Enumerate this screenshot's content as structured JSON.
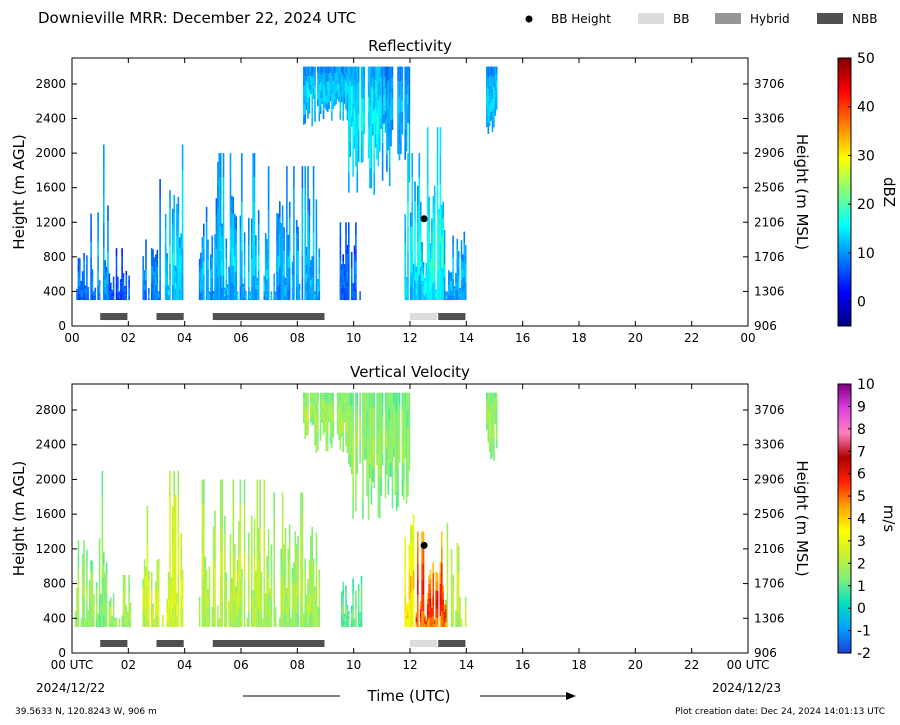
{
  "header": {
    "title": "Downieville MRR:  December 22, 2024 UTC",
    "legend": [
      {
        "label": "BB Height",
        "kind": "dot",
        "color": "#000000"
      },
      {
        "label": "BB",
        "kind": "box",
        "color": "#dcdcdc"
      },
      {
        "label": "Hybrid",
        "kind": "box",
        "color": "#969696"
      },
      {
        "label": "NBB",
        "kind": "box",
        "color": "#505050"
      }
    ]
  },
  "footer": {
    "location": "39.5633 N, 120.8243 W, 906 m",
    "created": "Plot creation date: Dec 24, 2024 14:01:13 UTC",
    "xlabel": "Time (UTC)",
    "start_date": "2024/12/22",
    "end_date": "2024/12/23"
  },
  "chart_data": [
    {
      "type": "heatmap",
      "title": "Reflectivity",
      "ylabel": "Height (m AGL)",
      "ylabel_right": "Height (m MSL)",
      "x_ticks": [
        "00",
        "02",
        "04",
        "06",
        "08",
        "10",
        "12",
        "14",
        "16",
        "18",
        "20",
        "22",
        "00"
      ],
      "xlim": [
        0,
        24
      ],
      "ylim": [
        0,
        3100
      ],
      "y_ticks": [
        0,
        400,
        800,
        1200,
        1600,
        2000,
        2400,
        2800
      ],
      "y_ticks_right": [
        "906",
        "1306",
        "1706",
        "2106",
        "2506",
        "2906",
        "3306",
        "3706"
      ],
      "colorbar": {
        "label": "dBZ",
        "range": [
          -5,
          50
        ],
        "ticks": [
          0,
          10,
          20,
          30,
          40,
          50
        ],
        "stops": [
          "#00007f",
          "#0000ff",
          "#007fff",
          "#00ffff",
          "#7fff7f",
          "#ffff00",
          "#ff7f00",
          "#ff0000",
          "#7f0000"
        ]
      },
      "echoes": [
        {
          "t0": 0.1,
          "t1": 0.9,
          "h0": 300,
          "h1": 900,
          "peak": 1300,
          "level": 8
        },
        {
          "t0": 0.9,
          "t1": 1.3,
          "h0": 300,
          "h1": 1400,
          "peak": 2100,
          "level": 10
        },
        {
          "t0": 1.3,
          "t1": 2.1,
          "h0": 300,
          "h1": 700,
          "peak": 900,
          "level": 6
        },
        {
          "t0": 2.5,
          "t1": 3.3,
          "h0": 300,
          "h1": 1100,
          "peak": 1700,
          "level": 9
        },
        {
          "t0": 3.3,
          "t1": 3.9,
          "h0": 300,
          "h1": 1700,
          "peak": 2100,
          "level": 13
        },
        {
          "t0": 4.5,
          "t1": 5.2,
          "h0": 300,
          "h1": 1500,
          "peak": 1900,
          "level": 11
        },
        {
          "t0": 5.2,
          "t1": 6.9,
          "h0": 300,
          "h1": 1700,
          "peak": 2000,
          "level": 12
        },
        {
          "t0": 6.9,
          "t1": 8.8,
          "h0": 300,
          "h1": 1500,
          "peak": 1850,
          "level": 11
        },
        {
          "t0": 9.5,
          "t1": 10.3,
          "h0": 300,
          "h1": 1000,
          "peak": 1200,
          "level": 7
        },
        {
          "t0": 11.8,
          "t1": 12.5,
          "h0": 300,
          "h1": 1700,
          "peak": 2000,
          "level": 14
        },
        {
          "t0": 12.5,
          "t1": 13.2,
          "h0": 300,
          "h1": 1900,
          "peak": 2300,
          "level": 16
        },
        {
          "t0": 13.2,
          "t1": 14.0,
          "h0": 300,
          "h1": 1200,
          "peak": 1500,
          "level": 11
        }
      ],
      "aloft": [
        {
          "t0": 8.2,
          "t1": 9.8,
          "h0": 2300,
          "h1": 3000,
          "level": 12
        },
        {
          "t0": 9.8,
          "t1": 11.0,
          "h0": 1500,
          "h1": 3000,
          "level": 14
        },
        {
          "t0": 11.0,
          "t1": 12.0,
          "h0": 1600,
          "h1": 3000,
          "level": 11
        },
        {
          "t0": 14.7,
          "t1": 15.1,
          "h0": 2200,
          "h1": 3000,
          "level": 12
        }
      ],
      "bb_height": {
        "time": 12.5,
        "height": 1240
      },
      "bb_bars": [
        {
          "t0": 1.0,
          "t1": 2.0,
          "type": "NBB"
        },
        {
          "t0": 3.0,
          "t1": 4.0,
          "type": "NBB"
        },
        {
          "t0": 5.0,
          "t1": 9.0,
          "type": "NBB"
        },
        {
          "t0": 12.0,
          "t1": 13.0,
          "type": "BB"
        },
        {
          "t0": 13.0,
          "t1": 14.0,
          "type": "NBB"
        }
      ]
    },
    {
      "type": "heatmap",
      "title": "Vertical Velocity",
      "ylabel": "Height (m AGL)",
      "ylabel_right": "Height (m MSL)",
      "x_ticks": [
        "00 UTC",
        "02",
        "04",
        "06",
        "08",
        "10",
        "12",
        "14",
        "16",
        "18",
        "20",
        "22",
        "00 UTC"
      ],
      "xlim": [
        0,
        24
      ],
      "ylim": [
        0,
        3100
      ],
      "y_ticks": [
        0,
        400,
        800,
        1200,
        1600,
        2000,
        2400,
        2800
      ],
      "y_ticks_right": [
        "906",
        "1306",
        "1706",
        "2106",
        "2506",
        "2906",
        "3306",
        "3706"
      ],
      "colorbar": {
        "label": "m/s",
        "range": [
          -2,
          10
        ],
        "ticks": [
          -2,
          -1,
          0,
          1,
          2,
          3,
          4,
          5,
          6,
          7,
          8,
          9,
          10
        ],
        "stops": [
          "#1c3fd6",
          "#00a0ff",
          "#00e0c0",
          "#7fef7f",
          "#c8f030",
          "#ffff00",
          "#ffa000",
          "#ff2000",
          "#b00000",
          "#ff80c0",
          "#e040e0",
          "#800080"
        ]
      },
      "echoes": [
        {
          "t0": 0.1,
          "t1": 0.9,
          "h0": 300,
          "h1": 1200,
          "peak": 1300,
          "level": 1.6
        },
        {
          "t0": 0.9,
          "t1": 1.3,
          "h0": 300,
          "h1": 1400,
          "peak": 2100,
          "level": 1.5
        },
        {
          "t0": 1.3,
          "t1": 2.1,
          "h0": 300,
          "h1": 700,
          "peak": 900,
          "level": 1.8
        },
        {
          "t0": 2.5,
          "t1": 3.3,
          "h0": 300,
          "h1": 1100,
          "peak": 1700,
          "level": 2.4
        },
        {
          "t0": 3.3,
          "t1": 3.9,
          "h0": 300,
          "h1": 1900,
          "peak": 2100,
          "level": 2.6
        },
        {
          "t0": 4.5,
          "t1": 5.2,
          "h0": 300,
          "h1": 1700,
          "peak": 2000,
          "level": 2.0
        },
        {
          "t0": 5.2,
          "t1": 6.9,
          "h0": 300,
          "h1": 1700,
          "peak": 2000,
          "level": 2.1
        },
        {
          "t0": 6.9,
          "t1": 8.8,
          "h0": 300,
          "h1": 1500,
          "peak": 1850,
          "level": 1.8
        },
        {
          "t0": 9.5,
          "t1": 10.3,
          "h0": 300,
          "h1": 1000,
          "peak": 1200,
          "level": 1.0
        },
        {
          "t0": 11.8,
          "t1": 12.2,
          "h0": 300,
          "h1": 1500,
          "peak": 1600,
          "level": 3.5
        },
        {
          "t0": 12.2,
          "t1": 13.3,
          "h0": 300,
          "h1": 1100,
          "peak": 1400,
          "level": 5.3
        },
        {
          "t0": 13.3,
          "t1": 14.0,
          "h0": 300,
          "h1": 1300,
          "peak": 1500,
          "level": 2.2
        }
      ],
      "aloft": [
        {
          "t0": 8.2,
          "t1": 9.8,
          "h0": 2300,
          "h1": 3000,
          "level": 1.7
        },
        {
          "t0": 9.8,
          "t1": 11.0,
          "h0": 1500,
          "h1": 3000,
          "level": 1.5
        },
        {
          "t0": 11.0,
          "t1": 12.0,
          "h0": 1600,
          "h1": 3000,
          "level": 1.4
        },
        {
          "t0": 14.7,
          "t1": 15.1,
          "h0": 2200,
          "h1": 3000,
          "level": 1.6
        }
      ],
      "bb_height": {
        "time": 12.5,
        "height": 1240
      },
      "bb_bars": [
        {
          "t0": 1.0,
          "t1": 2.0,
          "type": "NBB"
        },
        {
          "t0": 3.0,
          "t1": 4.0,
          "type": "NBB"
        },
        {
          "t0": 5.0,
          "t1": 9.0,
          "type": "NBB"
        },
        {
          "t0": 12.0,
          "t1": 13.0,
          "type": "BB"
        },
        {
          "t0": 13.0,
          "t1": 14.0,
          "type": "NBB"
        }
      ]
    }
  ]
}
